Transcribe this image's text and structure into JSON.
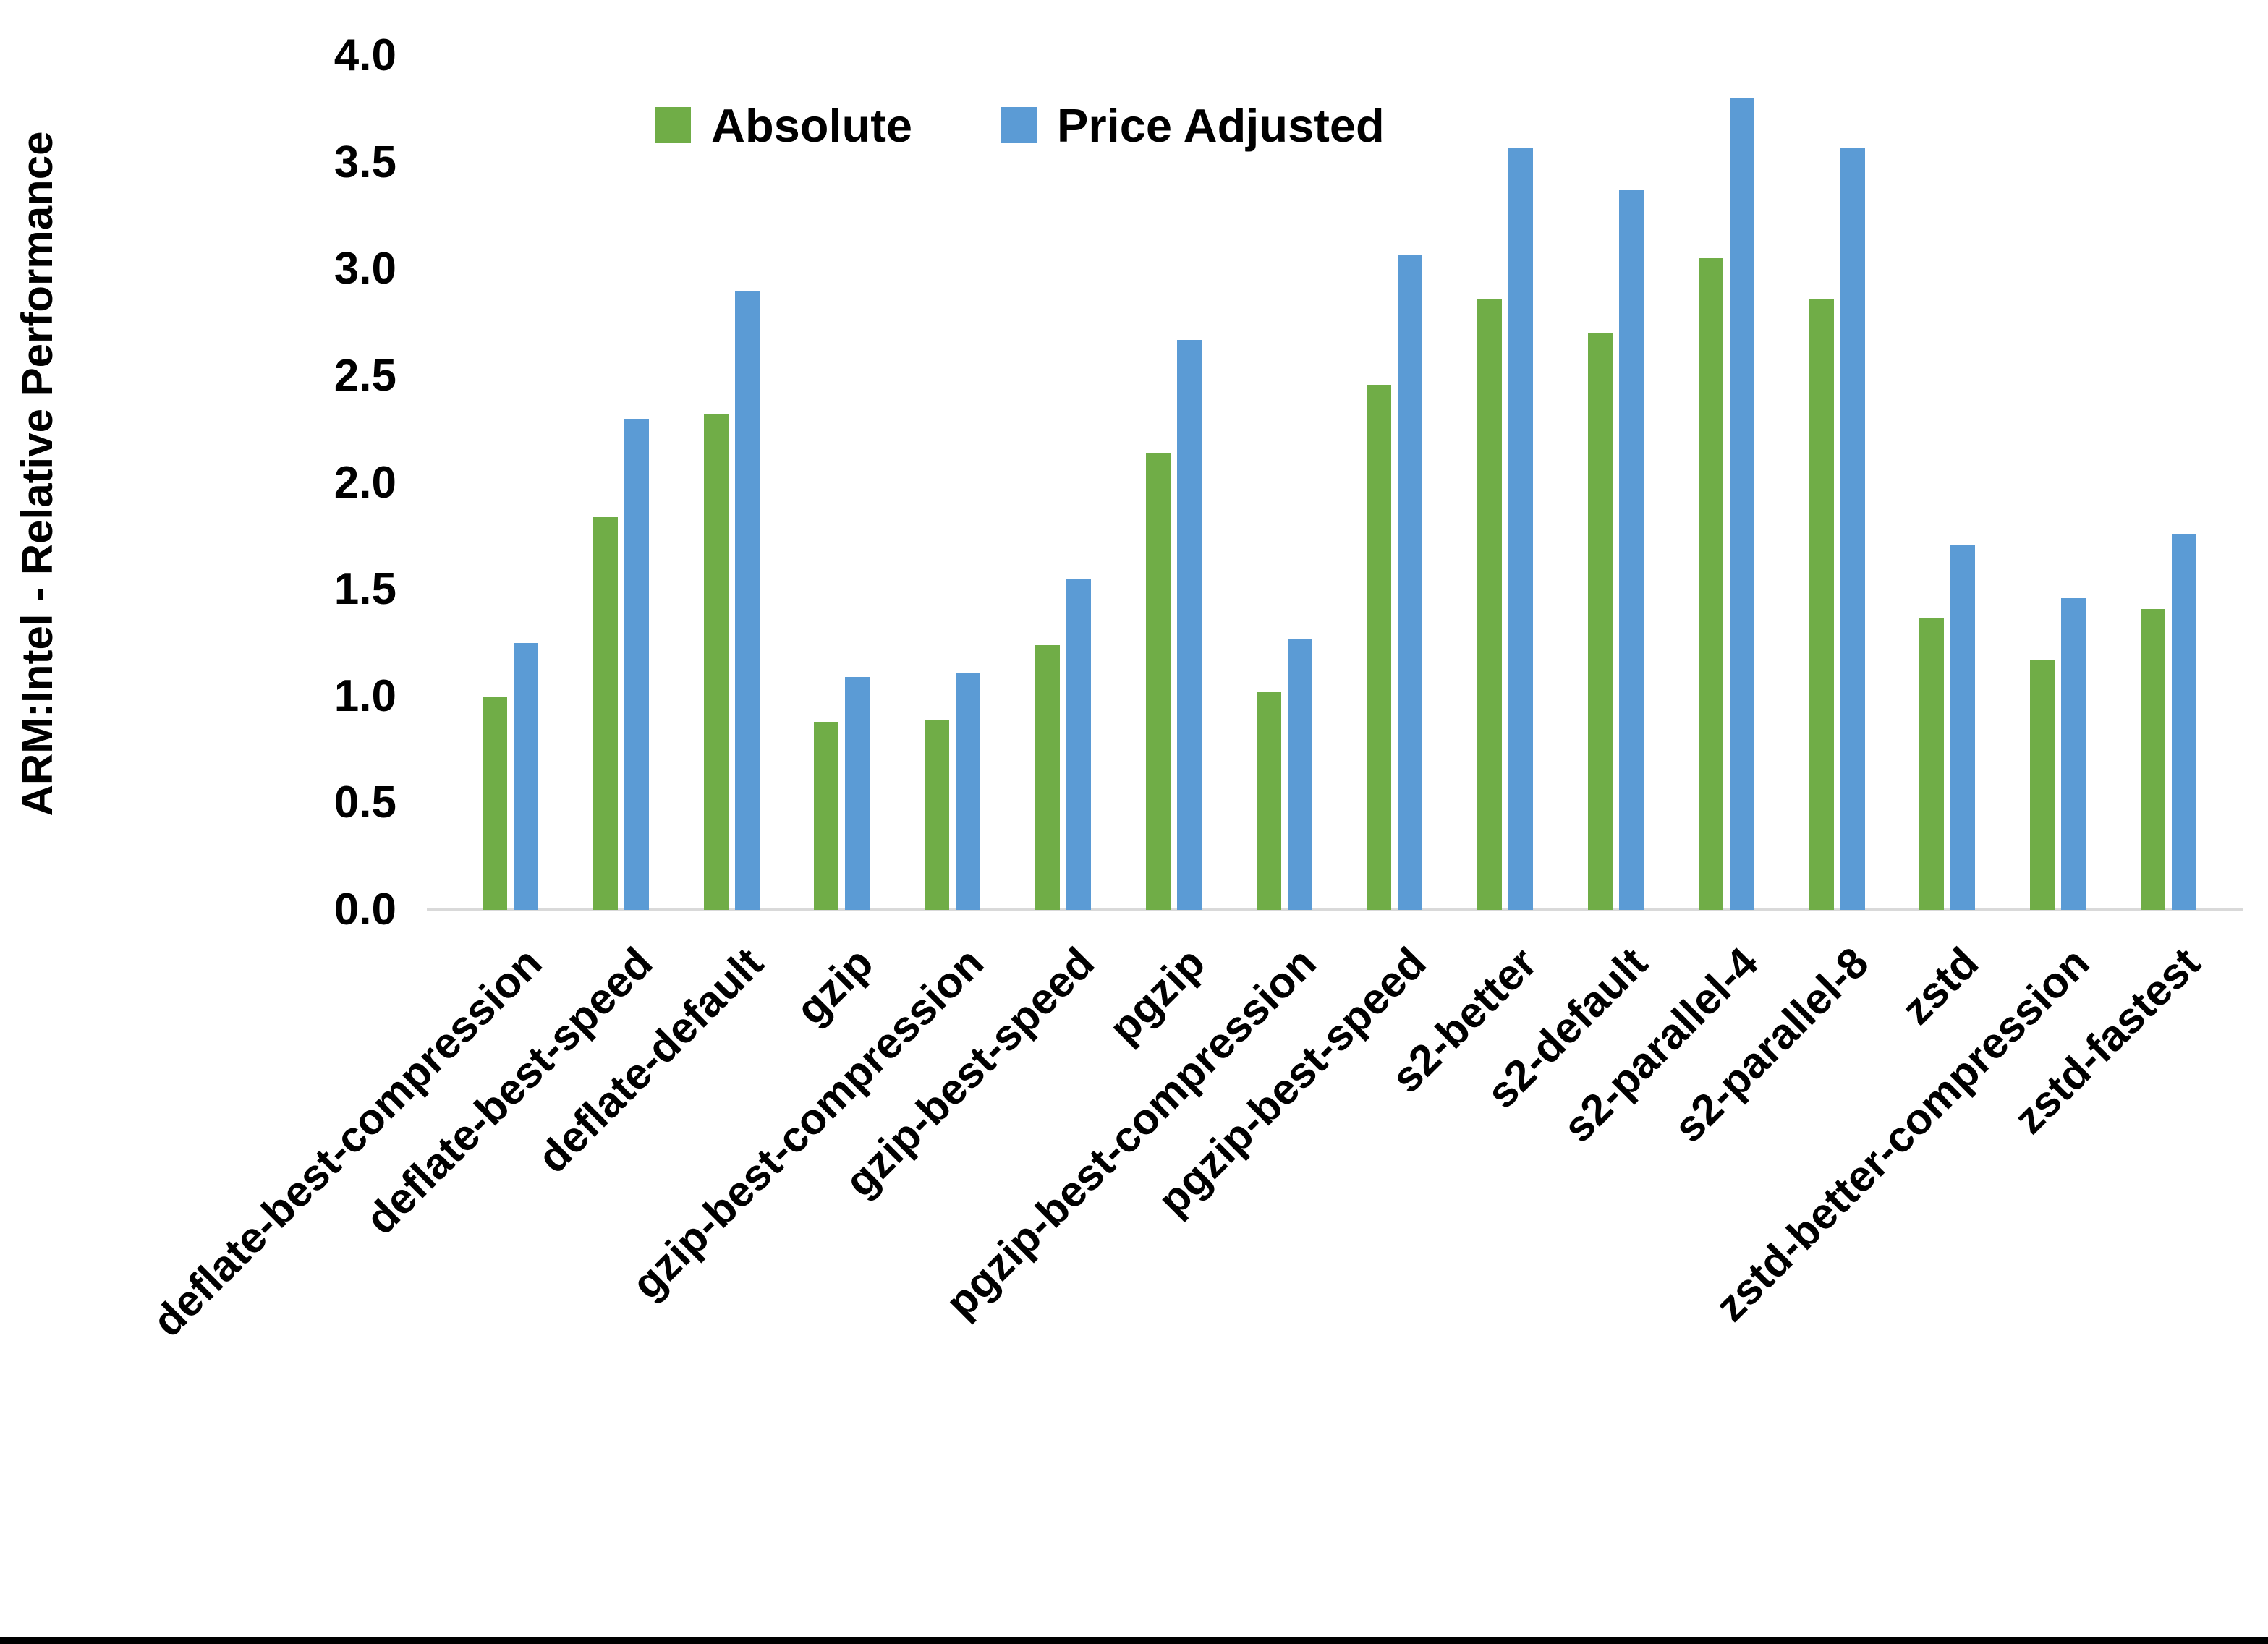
{
  "chart_data": {
    "type": "bar",
    "title": "",
    "ylabel": "ARM:Intel - Relative Performance",
    "xlabel": "",
    "ylim": [
      0.0,
      4.0
    ],
    "ytick_step": 0.5,
    "ytick_labels": [
      "0.0",
      "0.5",
      "1.0",
      "1.5",
      "2.0",
      "2.5",
      "3.0",
      "3.5",
      "4.0"
    ],
    "grid": false,
    "legend_position": "top-center",
    "categories": [
      "deflate-best-compression",
      "deflate-best-speed",
      "deflate-default",
      "gzip",
      "gzip-best-compression",
      "gzip-best-speed",
      "pgzip",
      "pgzip-best-compression",
      "pgzip-best-speed",
      "s2-better",
      "s2-default",
      "s2-parallel-4",
      "s2-parallel-8",
      "zstd",
      "zstd-better-compression",
      "zstd-fastest"
    ],
    "series": [
      {
        "name": "Absolute",
        "color": "#70AD47",
        "values": [
          1.0,
          1.84,
          2.32,
          0.88,
          0.89,
          1.24,
          2.14,
          1.02,
          2.46,
          2.86,
          2.7,
          3.05,
          2.86,
          1.37,
          1.17,
          1.41
        ]
      },
      {
        "name": "Price Adjusted",
        "color": "#5B9BD5",
        "values": [
          1.25,
          2.3,
          2.9,
          1.09,
          1.11,
          1.55,
          2.67,
          1.27,
          3.07,
          3.57,
          3.37,
          3.8,
          3.57,
          1.71,
          1.46,
          1.76
        ]
      }
    ],
    "axis_line_color": "#d9d9d9",
    "bottom_border_color": "#000000"
  }
}
